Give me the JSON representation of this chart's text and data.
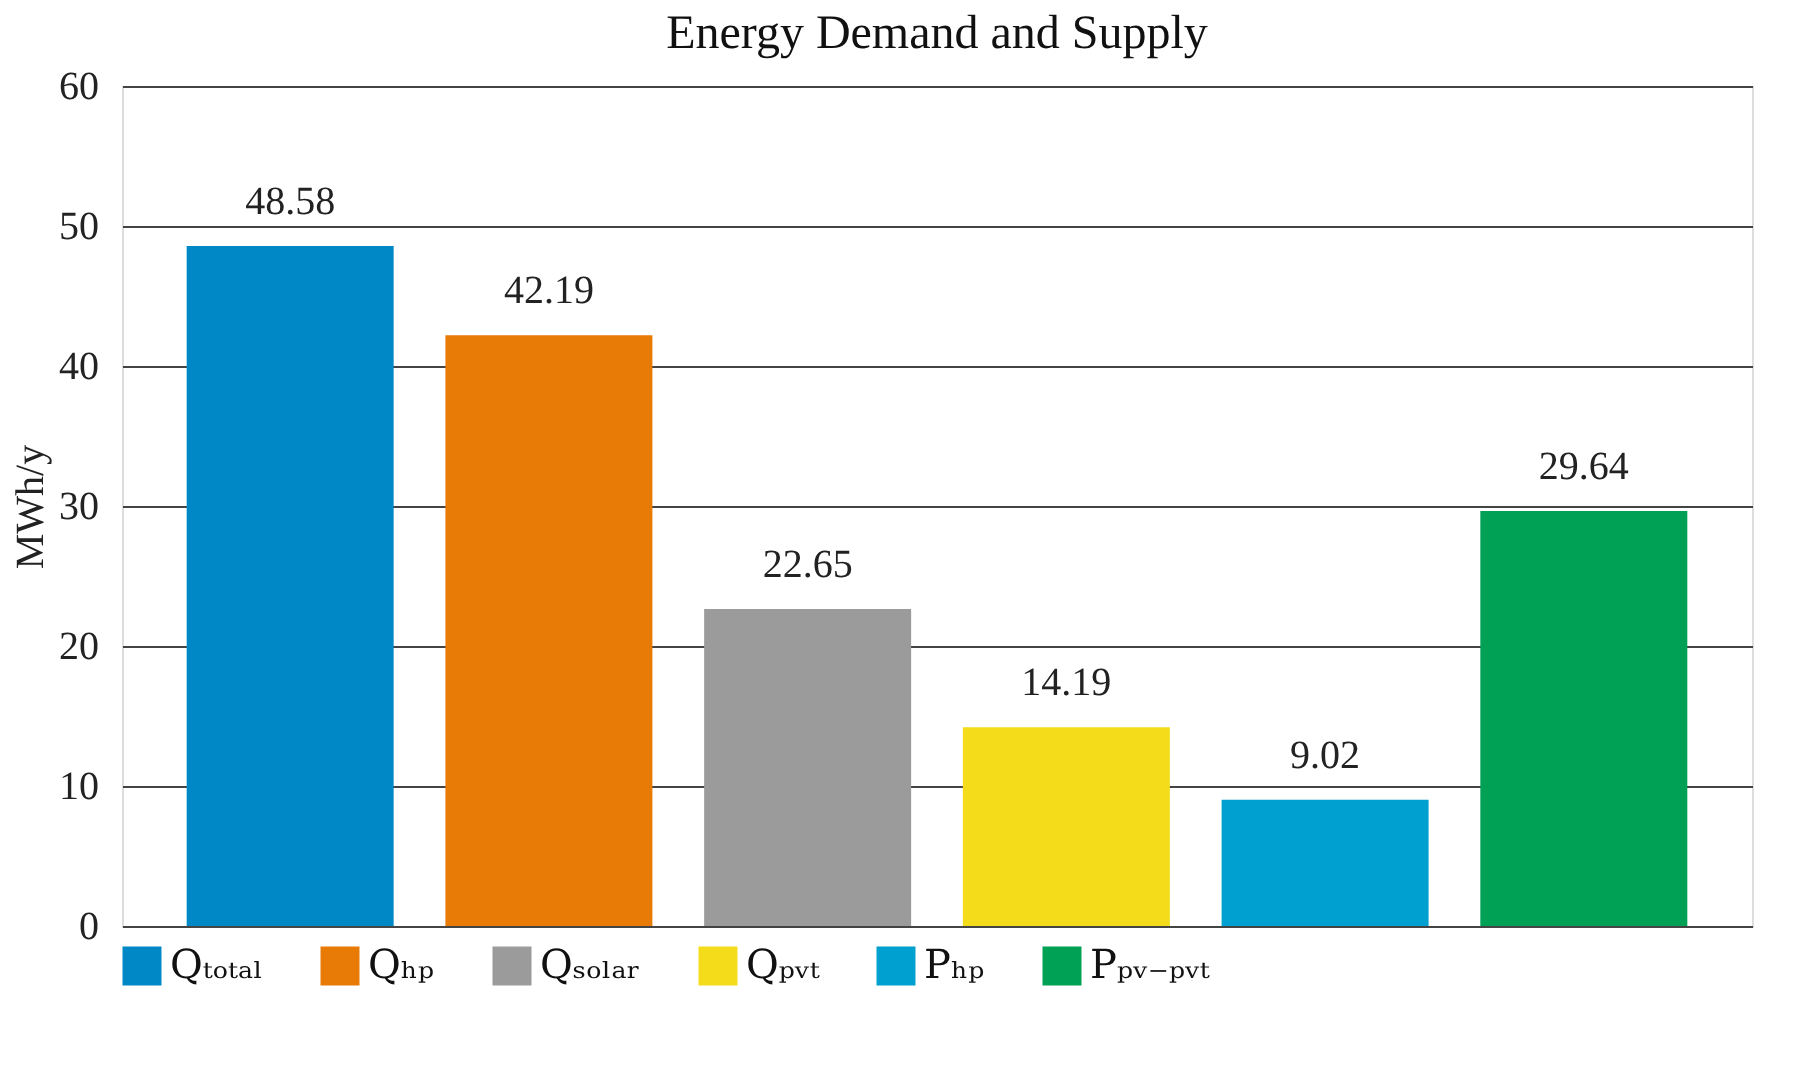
{
  "chart_data": {
    "type": "bar",
    "title": "Energy Demand and Supply",
    "ylabel": "MWh/y",
    "categories": [
      null,
      null,
      null,
      null,
      null,
      null
    ],
    "series": [
      {
        "name": "Qₜₒₜₐₗ",
        "color": "#0088c6",
        "values": [
          48.58,
          null,
          null,
          null,
          null,
          null
        ]
      },
      {
        "name": "Qₕₚ",
        "color": "#e87a06",
        "values": [
          null,
          42.19,
          null,
          null,
          null,
          null
        ]
      },
      {
        "name": "Qₛₒₗₐᵣ",
        "color": "#9b9b9b",
        "values": [
          null,
          null,
          22.65,
          null,
          null,
          null
        ]
      },
      {
        "name": "Qₚᵥₜ",
        "color": "#f4dc1b",
        "values": [
          null,
          null,
          null,
          14.19,
          null,
          null
        ]
      },
      {
        "name": "Pₕₚ",
        "color": "#00a0d0",
        "values": [
          null,
          null,
          null,
          null,
          9.02,
          null
        ]
      },
      {
        "name": "Pₚᵥ₋ₚᵥₜ",
        "color": "#00a055",
        "values": [
          null,
          null,
          null,
          null,
          null,
          29.64
        ]
      }
    ],
    "ylim": [
      0,
      60
    ],
    "yticks": [
      0,
      10,
      20,
      30,
      40,
      50,
      60
    ],
    "grid": "y",
    "data_labels": true,
    "legend": "bottom"
  }
}
